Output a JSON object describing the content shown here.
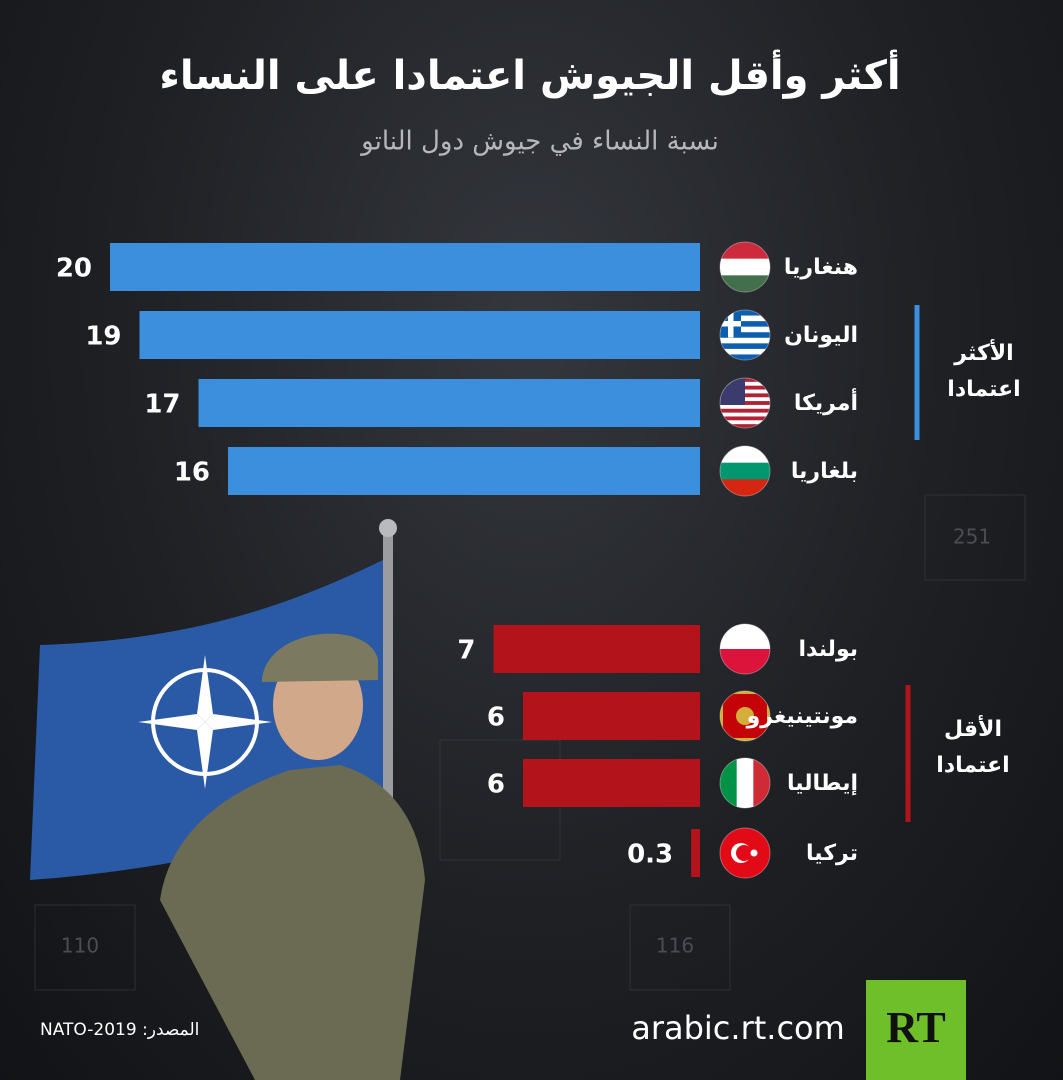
{
  "chart_data": {
    "type": "bar",
    "title": "أكثر وأقل الجيوش اعتمادا على النساء",
    "subtitle": "نسبة النساء في جيوش دول الناتو",
    "groups": [
      {
        "name": "الأكثر اعتمادا",
        "color": "#3b8fdc",
        "categories": [
          "هنغاريا",
          "اليونان",
          "أمريكا",
          "بلغاريا"
        ],
        "values": [
          20,
          19,
          17,
          16
        ]
      },
      {
        "name": "الأقل اعتمادا",
        "color": "#b3131b",
        "categories": [
          "بولندا",
          "مونتينيغرو",
          "إيطاليا",
          "تركيا"
        ],
        "values": [
          7,
          6,
          6,
          0.3
        ]
      }
    ],
    "background_numbers": [
      "251",
      "110",
      "116"
    ],
    "source": "المصدر: NATO-2019",
    "website": "arabic.rt.com",
    "logo": "RT"
  }
}
